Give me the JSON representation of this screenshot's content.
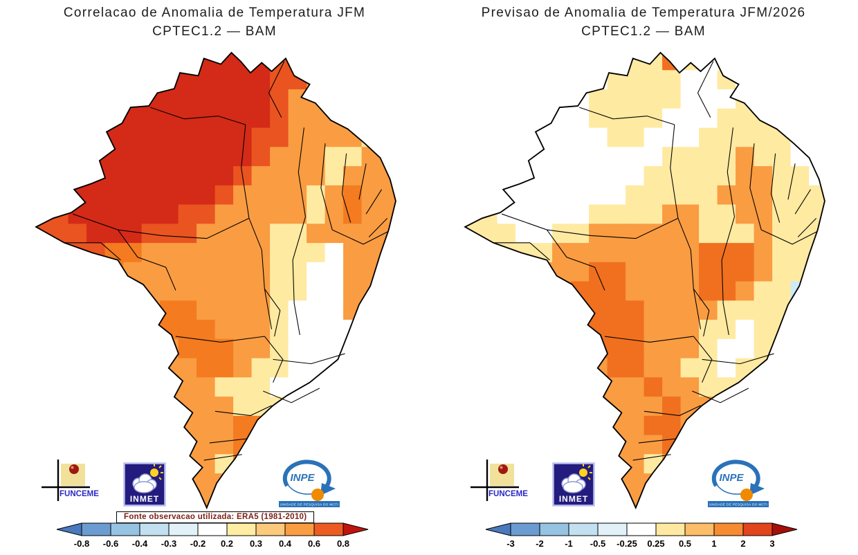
{
  "panels": [
    {
      "title_line1": "Correlacao de Anomalia de Temperatura JFM",
      "title_line2": "CPTEC1.2 — BAM",
      "footnote": "Fonte observacao utilizada:  ERA5  (1981-2010)",
      "colorbar": {
        "ticks": [
          "-0.8",
          "-0.6",
          "-0.4",
          "-0.3",
          "-0.2",
          "0.2",
          "0.3",
          "0.4",
          "0.6",
          "0.8"
        ],
        "colors": [
          "#4a79bd",
          "#6b9cd1",
          "#96c3e2",
          "#c2e0ef",
          "#e2f1f8",
          "#ffffff",
          "#ffeda4",
          "#fcca7c",
          "#f99d42",
          "#ec5c22",
          "#bf150e"
        ]
      },
      "map": {
        "palette": {
          "K": "#d42a18",
          "R": "#ea5420",
          "D": "#f47b20",
          "O": "#f99c42",
          "Y": "#ffeaa2",
          "W": "#ffffff"
        },
        "grid": [
          "OOOOOOOOKKKKKRROOOOO",
          "OOOOOOOKKKKKKRROOOOO",
          "OKKKKKKKKKKKKROOOOOO",
          "KKKKKKKKKKKKKROOOOOO",
          "KKKKKKKKKKKKRROOOOYO",
          "KKKKKKKKKKKKROOOYYOO",
          "KKKKKKKKKKKROOOOYOOO",
          "OKKKKKKKKKROOOOYODOO",
          "RRKKKKKKRROOOOOYODOO",
          "RRRKKKRRROOOOYYOOOOO",
          "RRRRDDOOOOOOOYYYWOOO",
          "ORRDDOOOOOOOOYYWWOOO",
          "OOODOOOOOOOOOYYWWOOO",
          "OOOOOOODDOOOOYWWWOOO",
          "OOOOOOODDDOOOYWWWWOO",
          "OOOOOOOODDDOOYWWWWOO",
          "OOOOOOOOODDOYYWWWOOO",
          "OOOOOOOOOOYYYWWWOOOO",
          "OOOOOOOOOOOYYYWWOOOO",
          "OOOOOOOOOOODDYYOOOOO",
          "OOOOOOOOOOODDYOOOOOO",
          "OOOOOOOOOOYDDOOOOOOO",
          "OOOOOOOOOOOYYOOOOOOO",
          "OOOOOOOOOOOOOOOOOOOO"
        ]
      }
    },
    {
      "title_line1": "Previsao de Anomalia de Temperatura JFM/2026",
      "title_line2": "CPTEC1.2 — BAM",
      "footnote": "",
      "colorbar": {
        "ticks": [
          "-3",
          "-2",
          "-1",
          "-0.5",
          "-0.25",
          "0.25",
          "0.5",
          "1",
          "2",
          "3"
        ],
        "colors": [
          "#4a79bd",
          "#6b9cd1",
          "#96c3e2",
          "#c2e0ef",
          "#e2f1f8",
          "#ffffff",
          "#ffe9a2",
          "#fbbd68",
          "#f68b32",
          "#e2441d",
          "#a50f0a"
        ]
      },
      "map": {
        "palette": {
          "W": "#ffffff",
          "Y": "#ffeaa2",
          "O": "#f99c42",
          "D": "#f0701f",
          "B": "#cdeaf6"
        },
        "grid": [
          "WWWWWWWWWYYDYWWWWWWW",
          "WWWWWWWWYYYYWWYWWWWW",
          "WWWWWWWYYYYYWWWYWWWW",
          "WWWWWWWYYYYWWWYYYWWW",
          "WWWWWWWWYYWWWYYYYYWW",
          "WWWWWWWWWWWYYYYOYYWW",
          "WWWWWWWWWWYYYYYOOYYW",
          "WWWWWWWWWYYYYYOOOYYY",
          "YYWWWWWYYYYOOYYOOYYY",
          "YYYWWYYOOOOOOYYYOYYY",
          "YYYYYOOOOOOOODDDOYYY",
          "YYYYOOODDOOOODDDOYYY",
          "YYYOOODDDOOOODDOYYBY",
          "YOOOOODDDDOOOOYYYYBY",
          "OOOOOODDDDOOOYYWYYBY",
          "OOOOOOODDDOOOYWWYYYY",
          "OOOOOOOODDOOYYWYYYYY",
          "OOOOOOOOOODOOYYYYYYY",
          "OOOOOOOOOOODOOYYYYYY",
          "OOOOOOOOOODDOOBYYYYY",
          "OOOOOOOOOOODDYYYYYYY",
          "OOOOOOOOOOYODYYYYYYY",
          "OOOOOOOOOOOYOYYYYYYY",
          "OOOOOOOOOOOOYYYYYYYY"
        ]
      }
    }
  ],
  "logos": {
    "funceme": {
      "label": "FUNCEME"
    },
    "inmet": {
      "label": "INMET"
    },
    "inpe": {
      "label": "INPE",
      "subtitle": "UNIDADE DE PESQUISA DO MCTI"
    }
  },
  "chart_data": [
    {
      "type": "heatmap",
      "title": "Correlacao de Anomalia de Temperatura JFM CPTEC1.2 — BAM",
      "colorbar_ticks": [
        -0.8,
        -0.6,
        -0.4,
        -0.3,
        -0.2,
        0.2,
        0.3,
        0.4,
        0.6,
        0.8
      ],
      "note": "Fonte observacao utilizada: ERA5 (1981-2010)"
    },
    {
      "type": "heatmap",
      "title": "Previsao de Anomalia de Temperatura JFM/2026 CPTEC1.2 — BAM",
      "colorbar_ticks": [
        -3,
        -2,
        -1,
        -0.5,
        -0.25,
        0.25,
        0.5,
        1,
        2,
        3
      ]
    }
  ]
}
